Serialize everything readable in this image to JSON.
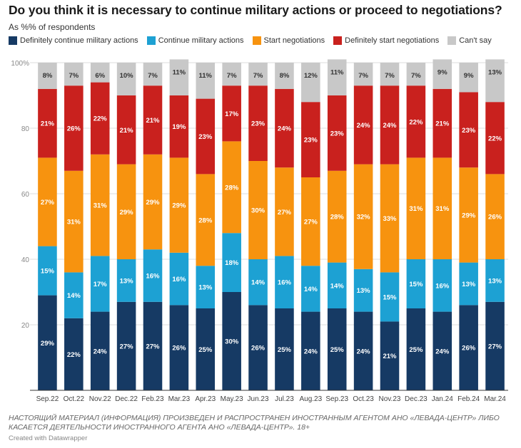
{
  "chart_data": {
    "type": "bar",
    "stacked": true,
    "title": "Do you think it is necessary to continue military actions or proceed to negotiations?",
    "subtitle": "As %% of respondents",
    "ylim": [
      0,
      100
    ],
    "yticks": [
      20,
      40,
      60,
      80,
      "100%"
    ],
    "grid": true,
    "legend_position": "top",
    "categories": [
      "Sep.22",
      "Oct.22",
      "Nov.22",
      "Dec.22",
      "Feb.23",
      "Mar.23",
      "Apr.23",
      "May.23",
      "Jun.23",
      "Jul.23",
      "Aug.23",
      "Sep.23",
      "Oct.23",
      "Nov.23",
      "Dec.23",
      "Jan.24",
      "Feb.24",
      "Mar.24"
    ],
    "series": [
      {
        "name": "Definitely continue military actions",
        "color": "#163a64",
        "values": [
          29,
          22,
          24,
          27,
          27,
          26,
          25,
          30,
          26,
          25,
          24,
          25,
          24,
          21,
          25,
          24,
          26,
          27
        ]
      },
      {
        "name": "Continue military actions",
        "color": "#1da1d3",
        "values": [
          15,
          14,
          17,
          13,
          16,
          16,
          13,
          18,
          14,
          16,
          14,
          14,
          13,
          15,
          15,
          16,
          13,
          13
        ]
      },
      {
        "name": "Start negotiations",
        "color": "#f7930f",
        "values": [
          27,
          31,
          31,
          29,
          29,
          29,
          28,
          28,
          30,
          27,
          27,
          28,
          32,
          33,
          31,
          31,
          29,
          26
        ]
      },
      {
        "name": "Definitely start negotiations",
        "color": "#c9211e",
        "values": [
          21,
          26,
          22,
          21,
          21,
          19,
          23,
          17,
          23,
          24,
          23,
          23,
          24,
          24,
          22,
          21,
          23,
          22
        ]
      },
      {
        "name": "Can't say",
        "color": "#c8c8c8",
        "values": [
          8,
          7,
          6,
          10,
          7,
          11,
          11,
          7,
          7,
          8,
          12,
          11,
          7,
          7,
          7,
          9,
          9,
          13
        ]
      }
    ]
  },
  "footer": {
    "note": "НАСТОЯЩИЙ МАТЕРИАЛ (ИНФОРМАЦИЯ) ПРОИЗВЕДЕН И РАСПРОСТРАНЕН ИНОСТРАННЫМ АГЕНТОМ АНО «ЛЕВАДА-ЦЕНТР» ЛИБО КАСАЕТСЯ ДЕЯТЕЛЬНОСТИ ИНОСТРАННОГО АГЕНТА АНО «ЛЕВАДА-ЦЕНТР». 18+",
    "credit": "Created with Datawrapper"
  }
}
